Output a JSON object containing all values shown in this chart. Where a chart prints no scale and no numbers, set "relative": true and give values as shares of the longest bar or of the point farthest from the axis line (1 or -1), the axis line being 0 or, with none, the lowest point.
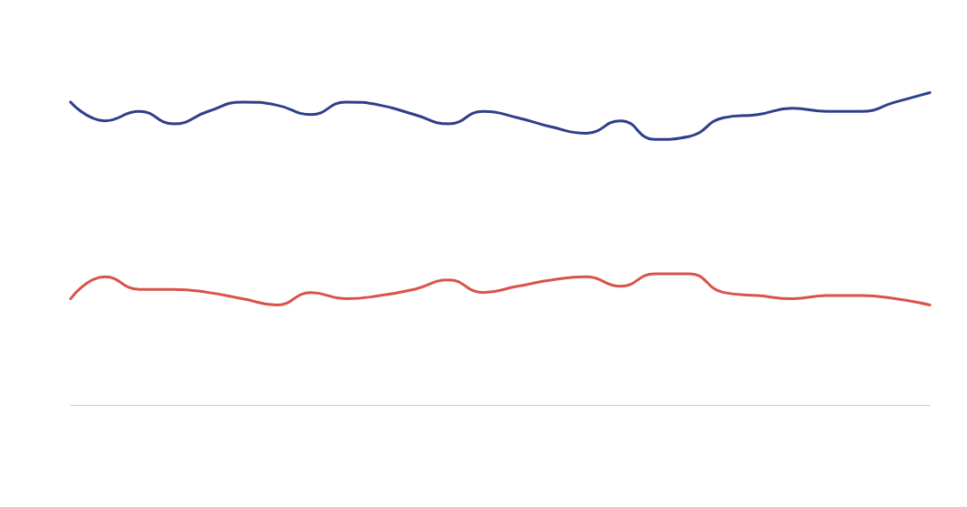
{
  "chart_data": {
    "type": "line",
    "relative": true,
    "categories": [
      null,
      null,
      null,
      null,
      null,
      null,
      null,
      null,
      null,
      null,
      null,
      null,
      null,
      null,
      null,
      null,
      null,
      null,
      null,
      null,
      null,
      null,
      null,
      null,
      null,
      null
    ],
    "series": [
      {
        "color": "#2e3f8a",
        "values": [
          0.97,
          0.91,
          0.94,
          0.9,
          0.94,
          0.97,
          0.96,
          0.93,
          0.97,
          0.96,
          0.93,
          0.9,
          0.94,
          0.92,
          0.89,
          0.87,
          0.91,
          0.85,
          0.86,
          0.92,
          0.93,
          0.95,
          0.94,
          0.94,
          0.97,
          1
        ]
      },
      {
        "color": "#d9534a",
        "values": [
          0.34,
          0.41,
          0.37,
          0.37,
          0.36,
          0.34,
          0.32,
          0.36,
          0.34,
          0.35,
          0.37,
          0.4,
          0.36,
          0.38,
          0.4,
          0.41,
          0.38,
          0.42,
          0.42,
          0.36,
          0.35,
          0.34,
          0.35,
          0.35,
          0.34,
          0.32
        ]
      }
    ],
    "line_style": "solid",
    "marker": "none"
  }
}
